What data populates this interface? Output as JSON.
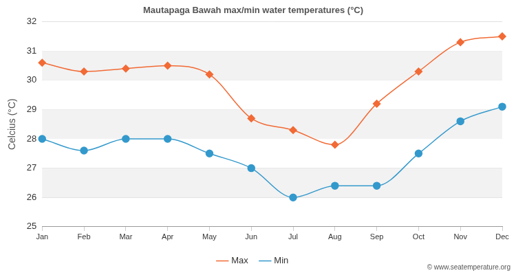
{
  "chart_data": {
    "type": "line",
    "title": "Mautapaga Bawah max/min water temperatures (°C)",
    "y_label": "Celcius (°C)",
    "categories": [
      "Jan",
      "Feb",
      "Mar",
      "Apr",
      "May",
      "Jun",
      "Jul",
      "Aug",
      "Sep",
      "Oct",
      "Nov",
      "Dec"
    ],
    "series": [
      {
        "name": "Max",
        "color": "#f26a35",
        "marker": "diamond",
        "values": [
          30.6,
          30.3,
          30.4,
          30.5,
          30.2,
          28.7,
          28.3,
          27.8,
          29.2,
          30.3,
          31.3,
          31.5
        ]
      },
      {
        "name": "Min",
        "color": "#3399cc",
        "marker": "circle",
        "values": [
          28.0,
          27.6,
          28.0,
          28.0,
          27.5,
          27.0,
          26.0,
          26.4,
          26.4,
          27.5,
          28.6,
          29.1
        ]
      }
    ],
    "ylim": [
      25,
      32
    ],
    "yticks": [
      25,
      26,
      27,
      28,
      29,
      30,
      31,
      32
    ],
    "grid": true,
    "legend": "bottom",
    "annotations": [
      "© www.seatemperature.org"
    ]
  }
}
